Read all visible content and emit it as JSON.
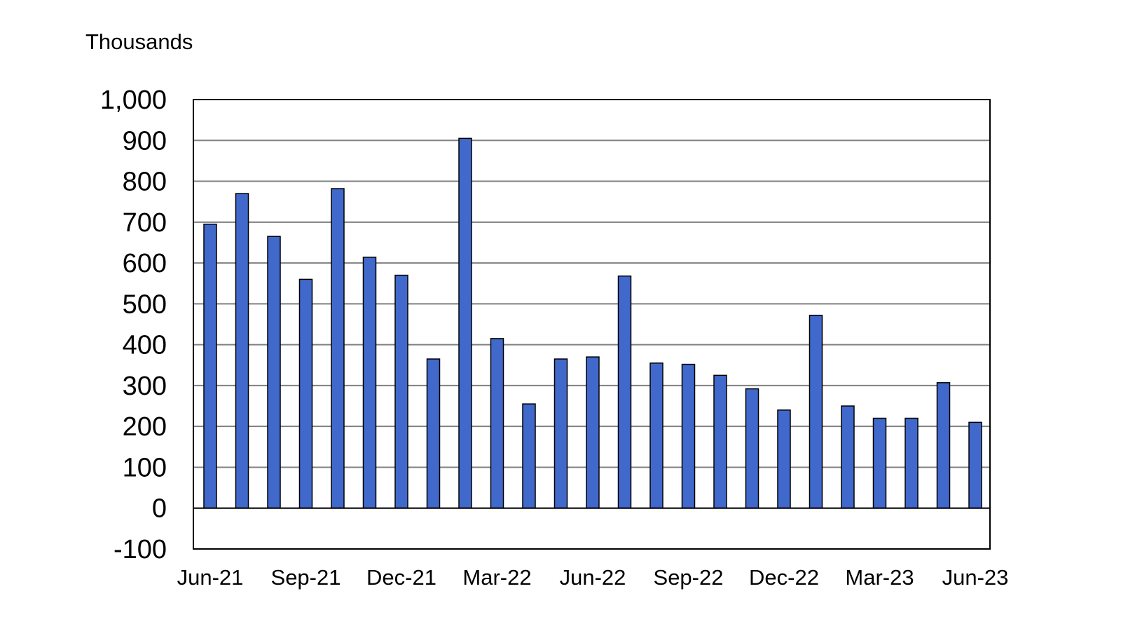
{
  "chart_data": {
    "type": "bar",
    "ylabel": "Thousands",
    "xlabel": "",
    "ylim": [
      -100,
      1000
    ],
    "yticks": [
      -100,
      0,
      100,
      200,
      300,
      400,
      500,
      600,
      700,
      800,
      900,
      1000
    ],
    "ytick_labels": [
      "-100",
      "0",
      "100",
      "200",
      "300",
      "400",
      "500",
      "600",
      "700",
      "800",
      "900",
      "1,000"
    ],
    "grid": "horizontal",
    "legend": "none",
    "bar_color": "#4169CC",
    "categories": [
      "Jun-21",
      "Jul-21",
      "Aug-21",
      "Sep-21",
      "Oct-21",
      "Nov-21",
      "Dec-21",
      "Jan-22",
      "Feb-22",
      "Mar-22",
      "Apr-22",
      "May-22",
      "Jun-22",
      "Jul-22",
      "Aug-22",
      "Sep-22",
      "Oct-22",
      "Nov-22",
      "Dec-22",
      "Jan-23",
      "Feb-23",
      "Mar-23",
      "Apr-23",
      "May-23",
      "Jun-23"
    ],
    "x_tick_labels": [
      "Jun-21",
      "Sep-21",
      "Dec-21",
      "Mar-22",
      "Jun-22",
      "Sep-22",
      "Dec-22",
      "Mar-23",
      "Jun-23"
    ],
    "values": [
      695,
      770,
      665,
      560,
      782,
      614,
      570,
      365,
      905,
      415,
      255,
      365,
      370,
      568,
      355,
      352,
      325,
      292,
      240,
      472,
      250,
      220,
      220,
      307,
      210
    ]
  }
}
